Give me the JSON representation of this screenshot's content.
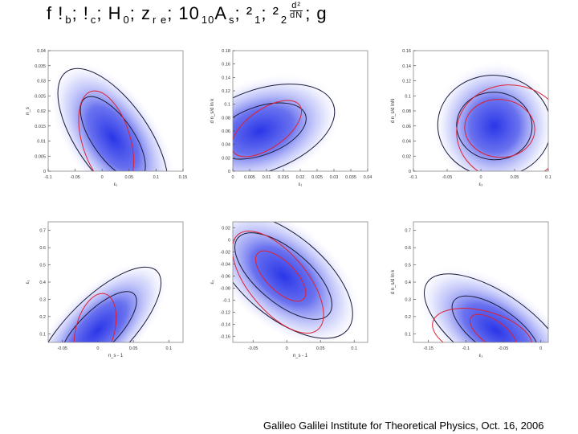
{
  "slide": {
    "title_parts": [
      {
        "main": "f !",
        "sub": "b"
      },
      {
        "main": "; !",
        "sub": "c"
      },
      {
        "main": "; H",
        "sub": "0"
      },
      {
        "main": "; z",
        "sub": "r e"
      },
      {
        "main": "; 10",
        "sub": "10"
      },
      {
        "main": "A",
        "sub": "s"
      },
      {
        "main": "; ²",
        "sub": "1"
      },
      {
        "main": "; ²",
        "sub": "2"
      }
    ],
    "title_fraction_num": "d²",
    "title_fraction_den": "dN",
    "title_suffix": "; g",
    "footer": "Galileo Galilei Institute for Theoretical Physics, Oct. 16, 2006"
  },
  "colors": {
    "density": "#2a36e8",
    "blue_contour": "#1a1a3a",
    "red_contour": "#e02030"
  },
  "chart_data": [
    {
      "type": "heatmap",
      "xlabel": "ε₁",
      "ylabel": "n_s",
      "xlim": [
        -0.1,
        0.15
      ],
      "ylim": [
        0,
        0.04
      ],
      "xticks": [
        "-0.1",
        "-0.05",
        "0",
        "0.05",
        "0.1",
        "0.15"
      ],
      "yticks": [
        "0",
        "0.005",
        "0.01",
        "0.015",
        "0.02",
        "0.025",
        "0.03",
        "0.035",
        "0.04"
      ],
      "density_center": [
        0.02,
        0.011
      ],
      "tilt_deg": 55,
      "grid": false
    },
    {
      "type": "heatmap",
      "xlabel": "ε₁",
      "ylabel": "d n_s/d ln k",
      "xlim": [
        0,
        0.04
      ],
      "ylim": [
        0,
        0.18
      ],
      "xticks": [
        "0",
        "0.005",
        "0.01",
        "0.015",
        "0.02",
        "0.025",
        "0.03",
        "0.035",
        "0.04"
      ],
      "yticks": [
        "0",
        "0.02",
        "0.04",
        "0.06",
        "0.08",
        "0.1",
        "0.12",
        "0.14",
        "0.16",
        "0.18"
      ],
      "density_center": [
        0.008,
        0.06
      ],
      "tilt_deg": -20,
      "grid": false
    },
    {
      "type": "heatmap",
      "xlabel": "ε₂",
      "ylabel": "d n_s/d lnN",
      "xlim": [
        -0.1,
        0.1
      ],
      "ylim": [
        0,
        0.16
      ],
      "xticks": [
        "-0.1",
        "-0.05",
        "0",
        "0.05",
        "0.1"
      ],
      "yticks": [
        "0",
        "0.02",
        "0.04",
        "0.06",
        "0.08",
        "0.1",
        "0.12",
        "0.14",
        "0.16"
      ],
      "density_center": [
        0.02,
        0.06
      ],
      "tilt_deg": 5,
      "grid": false
    },
    {
      "type": "heatmap",
      "xlabel": "n_s - 1",
      "ylabel": "ε₁",
      "xlim": [
        -0.07,
        0.12
      ],
      "ylim": [
        0.05,
        0.75
      ],
      "xticks": [
        "-0.05",
        "0",
        "0.05",
        "0.1"
      ],
      "yticks": [
        "0.1",
        "0.2",
        "0.3",
        "0.4",
        "0.5",
        "0.6",
        "0.7"
      ],
      "density_center": [
        0.0,
        0.12
      ],
      "tilt_deg": -45,
      "grid": false
    },
    {
      "type": "heatmap",
      "xlabel": "n_s - 1",
      "ylabel": "ε₂",
      "xlim": [
        -0.08,
        0.12
      ],
      "ylim": [
        -0.17,
        0.03
      ],
      "xticks": [
        "-0.05",
        "0",
        "0.05",
        "0.1"
      ],
      "yticks": [
        "0.02",
        "0",
        "-0.02",
        "-0.04",
        "-0.06",
        "-0.08",
        "-0.1",
        "-0.12",
        "-0.14",
        "-0.16"
      ],
      "density_center": [
        -0.005,
        -0.06
      ],
      "tilt_deg": 40,
      "grid": false
    },
    {
      "type": "heatmap",
      "xlabel": "ε₁",
      "ylabel": "d n_s/d ln k",
      "xlim": [
        -0.17,
        0.01
      ],
      "ylim": [
        0.05,
        0.75
      ],
      "xticks": [
        "-0.15",
        "-0.1",
        "-0.05",
        "0"
      ],
      "yticks": [
        "0.1",
        "0.2",
        "0.3",
        "0.4",
        "0.5",
        "0.6",
        "0.7"
      ],
      "density_center": [
        -0.06,
        0.12
      ],
      "tilt_deg": 35,
      "grid": false
    }
  ]
}
